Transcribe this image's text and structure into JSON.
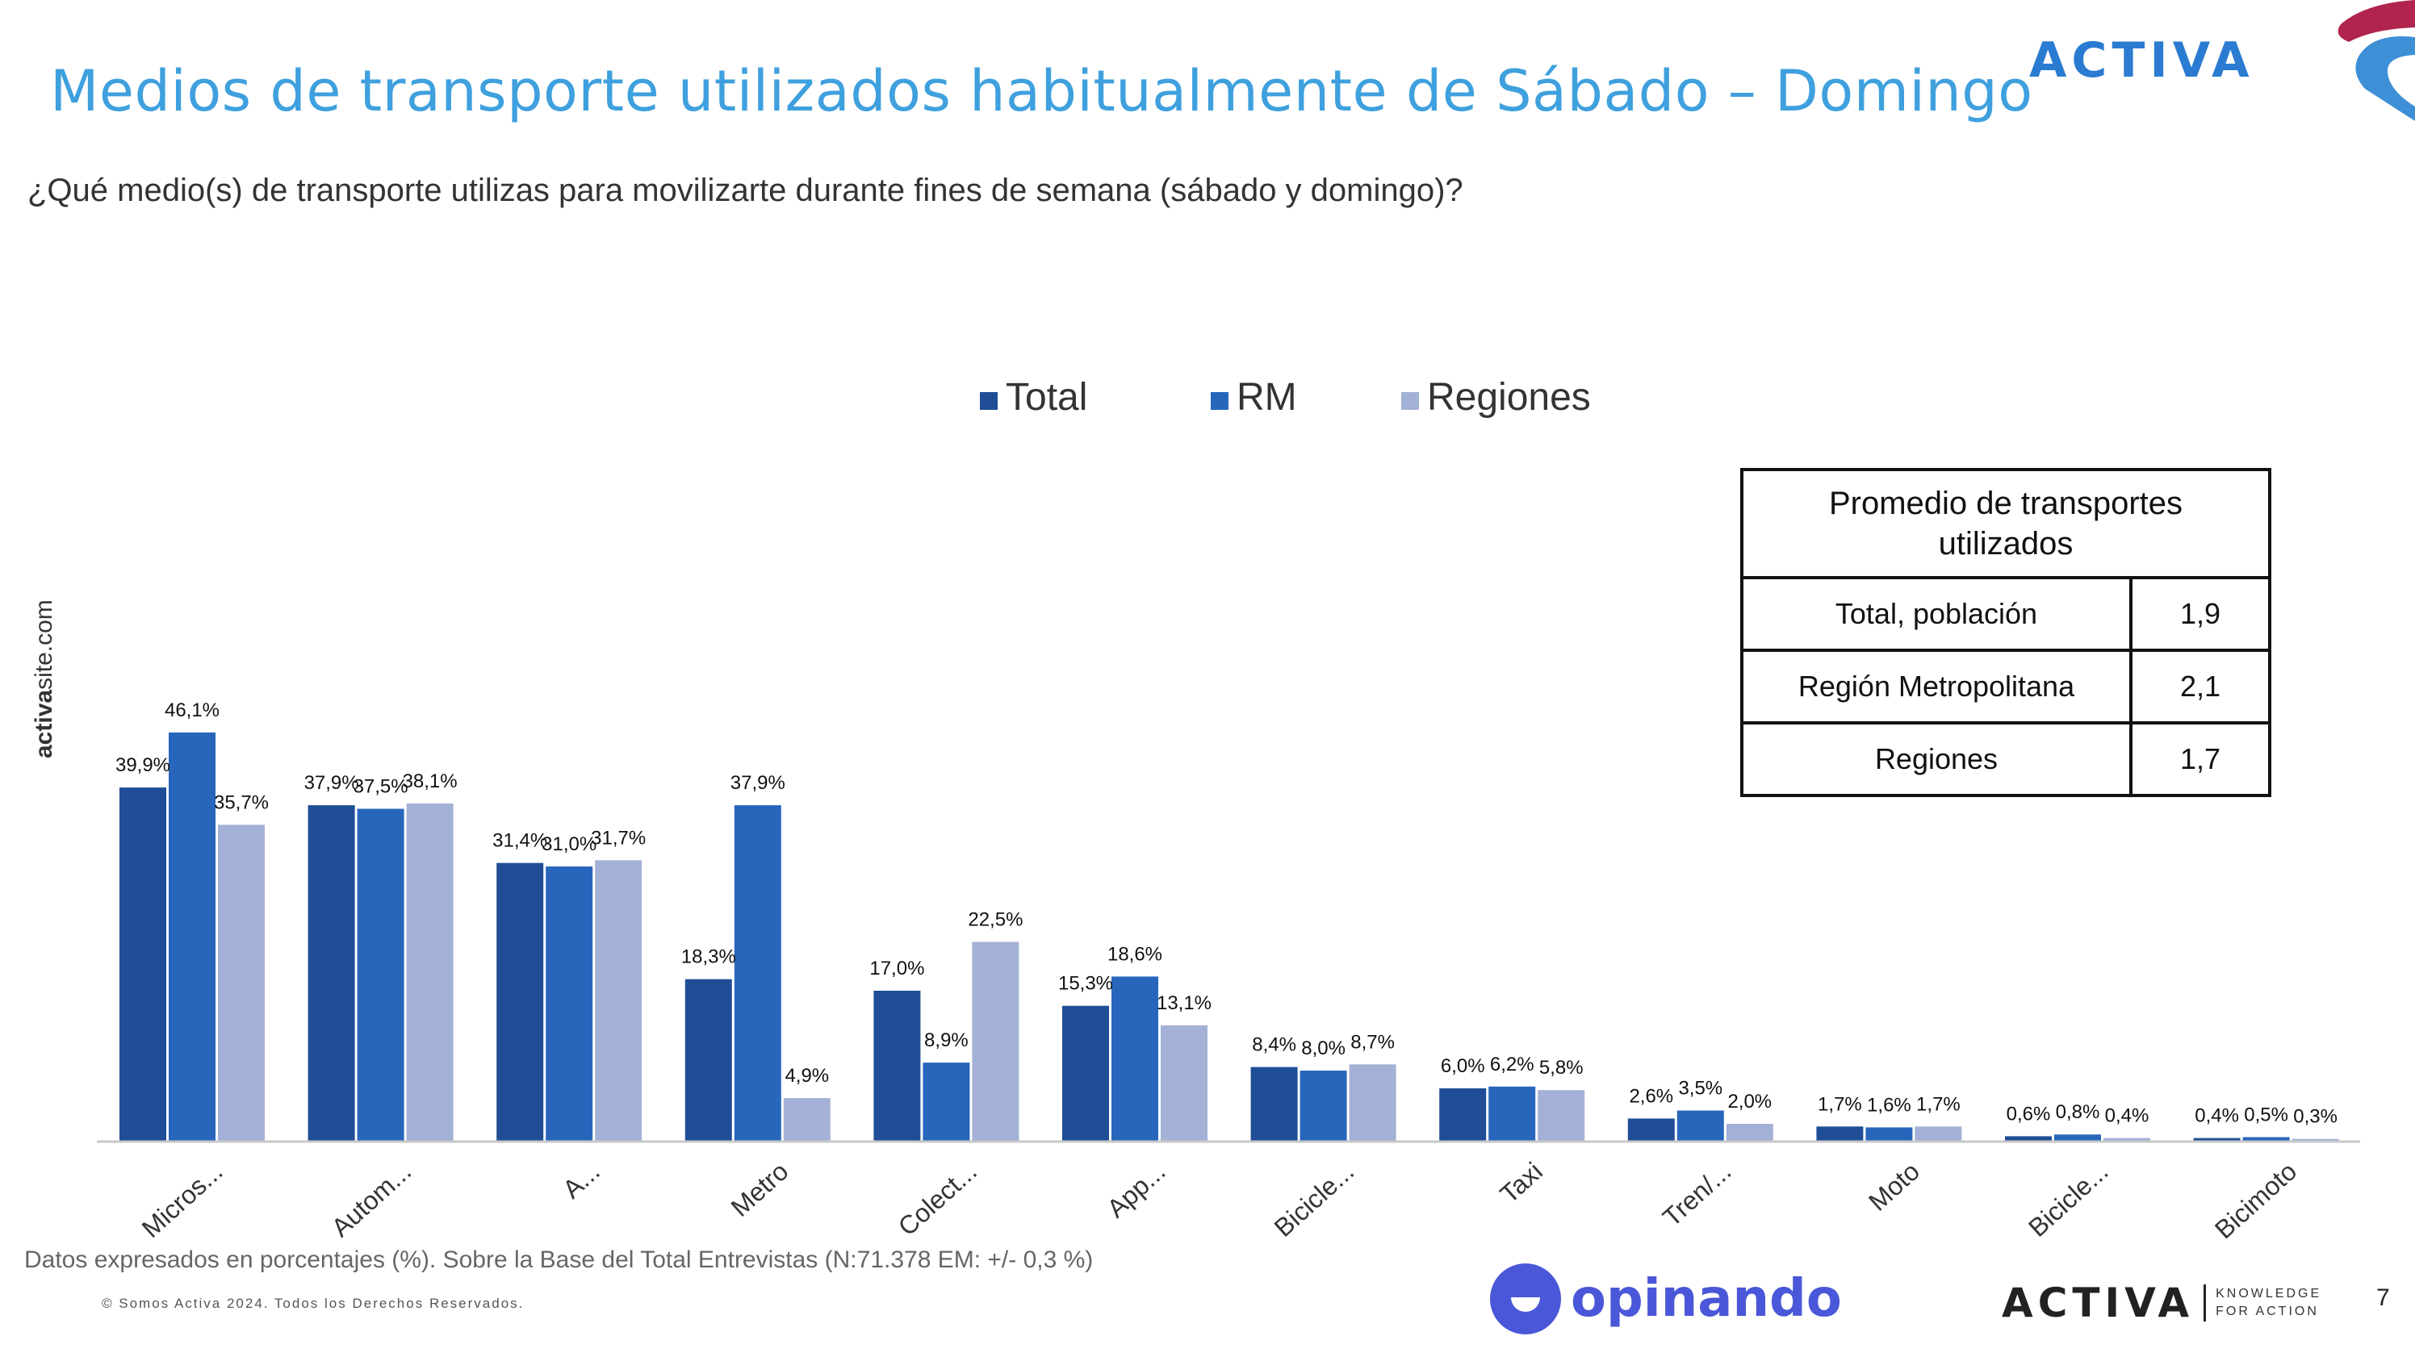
{
  "header": {
    "title": "Medios de transporte utilizados habitualmente de Sábado – Domingo",
    "question": "¿Qué medio(s) de transporte utilizas para movilizarte durante fines de semana (sábado y domingo)?",
    "brand": "ACTIVA"
  },
  "side": {
    "site_bold": "activa",
    "site_rest": "site.com"
  },
  "colors": {
    "total": "#1f4e96",
    "rm": "#2866bc",
    "regiones": "#a4b1d6",
    "title": "#3fa0de"
  },
  "chart_data": {
    "type": "bar",
    "legend_position": "top-center",
    "ylim": [
      0,
      50
    ],
    "grid": false,
    "categories": [
      "Micros...",
      "Autom...",
      "A...",
      "Metro",
      "Colect...",
      "App...",
      "Bicicle...",
      "Taxi",
      "Tren/...",
      "Moto",
      "Bicicle...",
      "Bicimoto"
    ],
    "series": [
      {
        "name": "Total",
        "values": [
          39.9,
          37.9,
          31.4,
          18.3,
          17.0,
          15.3,
          8.4,
          6.0,
          2.6,
          1.7,
          0.6,
          0.4
        ],
        "labels": [
          "39,9%",
          "37,9%",
          "31,4%",
          "18,3%",
          "17,0%",
          "15,3%",
          "8,4%",
          "6,0%",
          "2,6%",
          "1,7%",
          "0,6%",
          "0,4%"
        ]
      },
      {
        "name": "RM",
        "values": [
          46.1,
          37.5,
          31.0,
          37.9,
          8.9,
          18.6,
          8.0,
          6.2,
          3.5,
          1.6,
          0.8,
          0.5
        ],
        "labels": [
          "46,1%",
          "37,5%",
          "31,0%",
          "37,9%",
          "8,9%",
          "18,6%",
          "8,0%",
          "6,2%",
          "3,5%",
          "1,6%",
          "0,8%",
          "0,5%"
        ]
      },
      {
        "name": "Regiones",
        "values": [
          35.7,
          38.1,
          31.7,
          4.9,
          22.5,
          13.1,
          8.7,
          5.8,
          2.0,
          1.7,
          0.4,
          0.3
        ],
        "labels": [
          "35,7%",
          "38,1%",
          "31,7%",
          "4,9%",
          "22,5%",
          "13,1%",
          "8,7%",
          "5,8%",
          "2,0%",
          "1,7%",
          "0,4%",
          "0,3%"
        ]
      }
    ]
  },
  "summary": {
    "title": "Promedio de transportes utilizados",
    "rows": [
      {
        "label": "Total, población",
        "value": "1,9"
      },
      {
        "label": "Región Metropolitana",
        "value": "2,1"
      },
      {
        "label": "Regiones",
        "value": "1,7"
      }
    ]
  },
  "footer": {
    "note": "Datos expresados en porcentajes (%). Sobre la Base del Total Entrevistas (N:71.378 EM: +/- 0,3 %)",
    "copyright": "© Somos Activa 2024. Todos los Derechos Reservados.",
    "opinando": "opinando",
    "brand": "ACTIVA",
    "tagline_1": "KNOWLEDGE",
    "tagline_2": "FOR ACTION",
    "page": "7"
  }
}
